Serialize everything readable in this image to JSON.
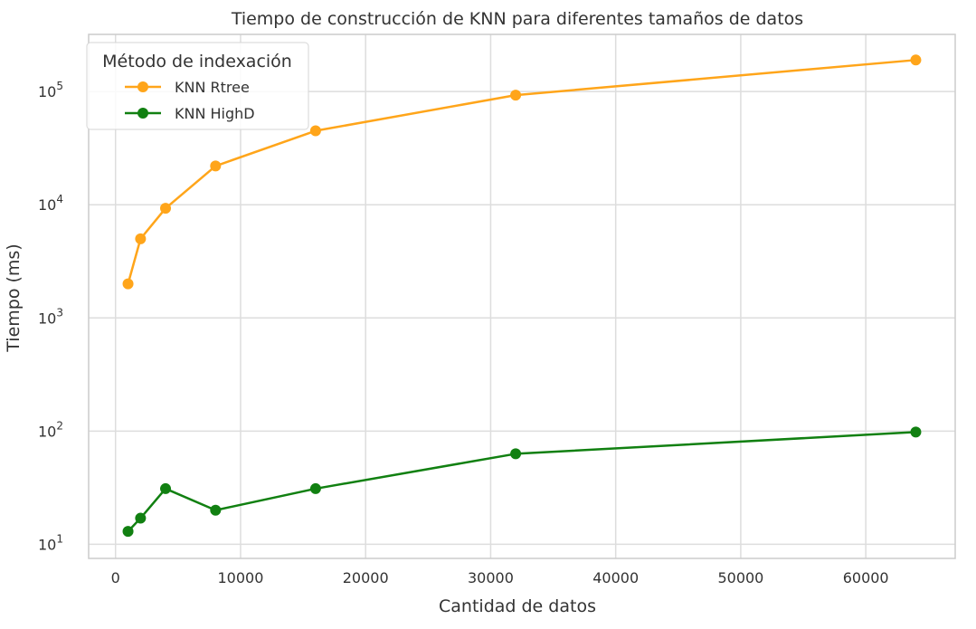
{
  "chart_data": {
    "type": "line",
    "title": "Tiempo de construcción de KNN para diferentes tamaños de datos",
    "xlabel": "Cantidad de datos",
    "ylabel": "Tiempo (ms)",
    "x_scale": "linear",
    "y_scale": "log",
    "xlim": [
      -2150,
      67150
    ],
    "ylim": [
      7.5,
      320000
    ],
    "x_ticks": [
      0,
      10000,
      20000,
      30000,
      40000,
      50000,
      60000
    ],
    "x_tick_labels": [
      "0",
      "10000",
      "20000",
      "30000",
      "40000",
      "50000",
      "60000"
    ],
    "y_ticks": [
      10,
      100,
      1000,
      10000,
      100000
    ],
    "y_tick_labels": [
      {
        "base": "10",
        "exp": "1"
      },
      {
        "base": "10",
        "exp": "2"
      },
      {
        "base": "10",
        "exp": "3"
      },
      {
        "base": "10",
        "exp": "4"
      },
      {
        "base": "10",
        "exp": "5"
      }
    ],
    "grid": true,
    "legend": {
      "title": "Método de indexación",
      "position": "top-left"
    },
    "x": [
      1000,
      2000,
      4000,
      8000,
      16000,
      32000,
      64000
    ],
    "series": [
      {
        "name": "KNN Rtree",
        "color": "#ffa51a",
        "values": [
          2000,
          5000,
          9300,
          22000,
          45000,
          93000,
          190000
        ]
      },
      {
        "name": "KNN HighD",
        "color": "#118011",
        "values": [
          13,
          17,
          31,
          20,
          31,
          63,
          98
        ]
      }
    ]
  }
}
